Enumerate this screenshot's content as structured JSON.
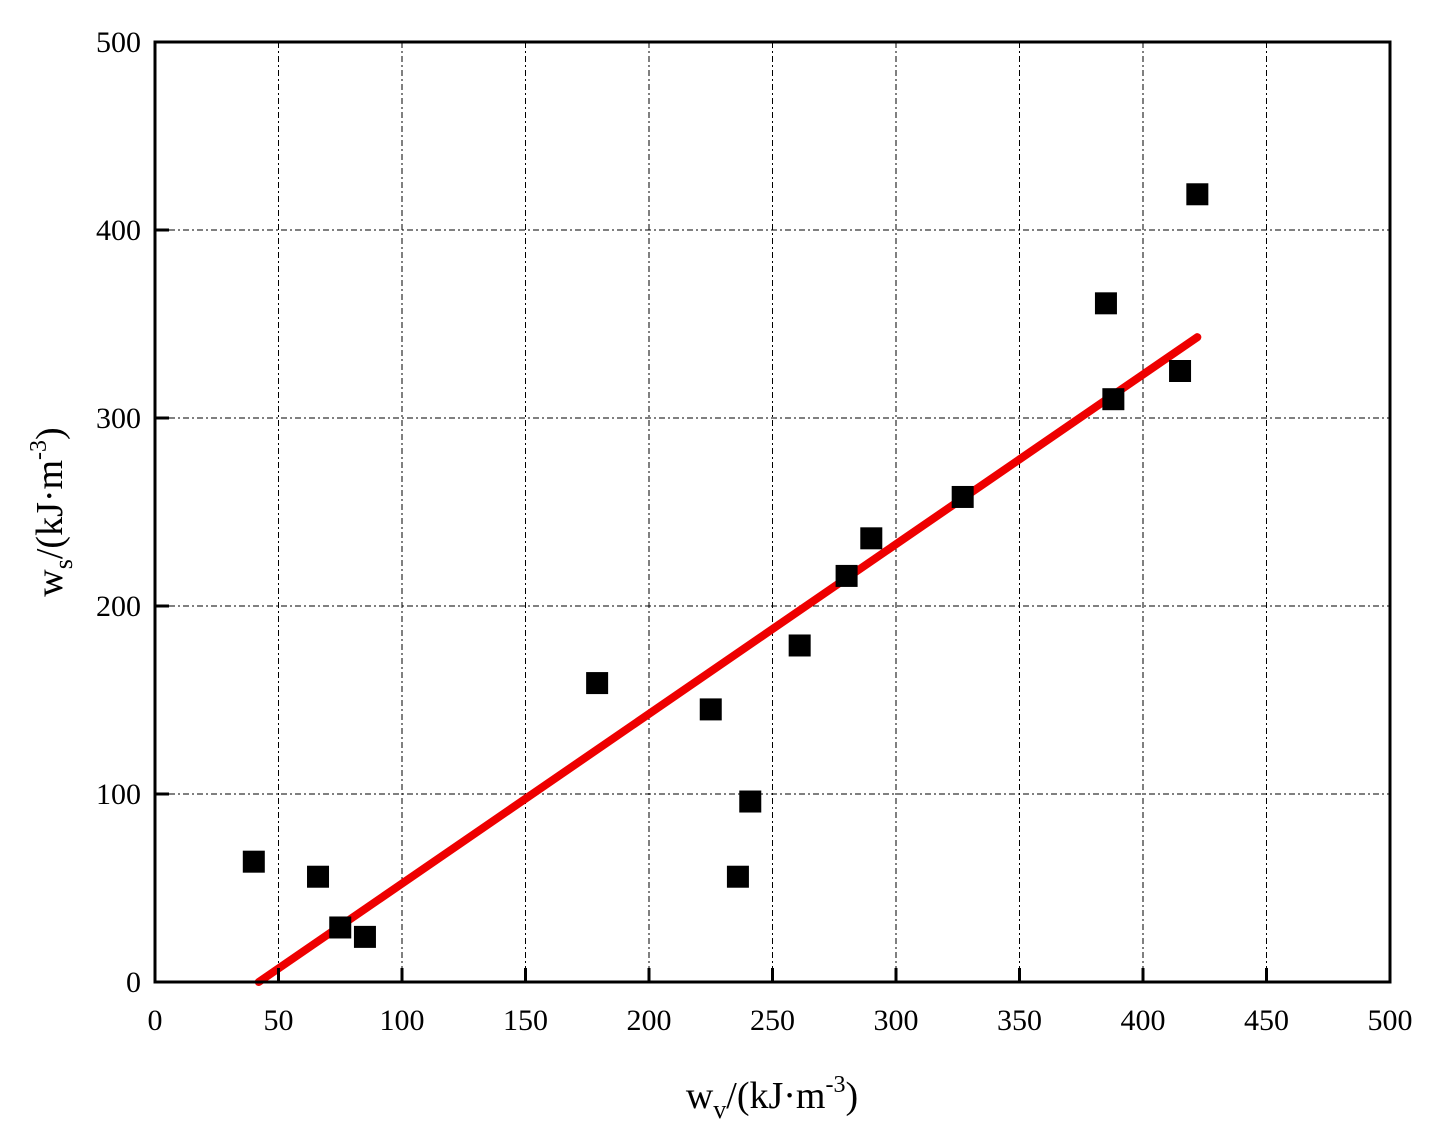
{
  "chart_data": {
    "type": "scatter",
    "xlabel": {
      "base": "w",
      "sub": "v",
      "unit_prefix": "/(kJ·m",
      "unit_sup": "-3",
      "unit_suffix": ")"
    },
    "ylabel": {
      "base": "w",
      "sub": "s",
      "unit_prefix": "/(kJ·m",
      "unit_sup": "-3",
      "unit_suffix": ")"
    },
    "xlim": [
      0,
      500
    ],
    "ylim": [
      0,
      500
    ],
    "xticks": [
      0,
      50,
      100,
      150,
      200,
      250,
      300,
      350,
      400,
      450,
      500
    ],
    "yticks": [
      0,
      100,
      200,
      300,
      400,
      500
    ],
    "grid": true,
    "series": [
      {
        "kind": "scatter",
        "color": "#000000",
        "marker": "square",
        "points": [
          [
            40,
            64
          ],
          [
            66,
            56
          ],
          [
            75,
            29
          ],
          [
            85,
            24
          ],
          [
            179,
            159
          ],
          [
            225,
            145
          ],
          [
            236,
            56
          ],
          [
            241,
            96
          ],
          [
            261,
            179
          ],
          [
            280,
            216
          ],
          [
            290,
            236
          ],
          [
            327,
            258
          ],
          [
            385,
            361
          ],
          [
            388,
            310
          ],
          [
            415,
            325
          ],
          [
            422,
            419
          ]
        ]
      },
      {
        "kind": "line",
        "color": "#ee0000",
        "points": [
          [
            42,
            0
          ],
          [
            422,
            343
          ]
        ]
      }
    ]
  }
}
